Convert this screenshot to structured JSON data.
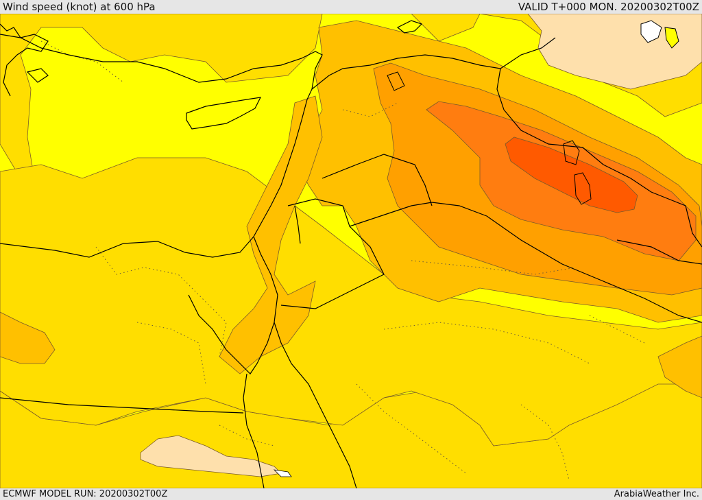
{
  "header": {
    "title": "Wind speed (knot) at 600 hPa",
    "valid": "VALID T+000 MON. 20200302T00Z"
  },
  "footer": {
    "model_run": "ECMWF MODEL RUN: 20200302T00Z",
    "credit": "ArabiaWeather Inc."
  },
  "map": {
    "variable": "wind speed",
    "units": "knot",
    "level": "600 hPa",
    "palette": {
      "light_beige": "#fee0ac",
      "yellow": "#ffff00",
      "gold": "#ffde00",
      "amber": "#ffc000",
      "orange": "#ffa000",
      "dark_orange": "#ff7d10",
      "red_orange": "#ff5a00",
      "coastline": "#000000",
      "contour_line": "#7a5a2a",
      "water_body": "#ffffff"
    }
  }
}
